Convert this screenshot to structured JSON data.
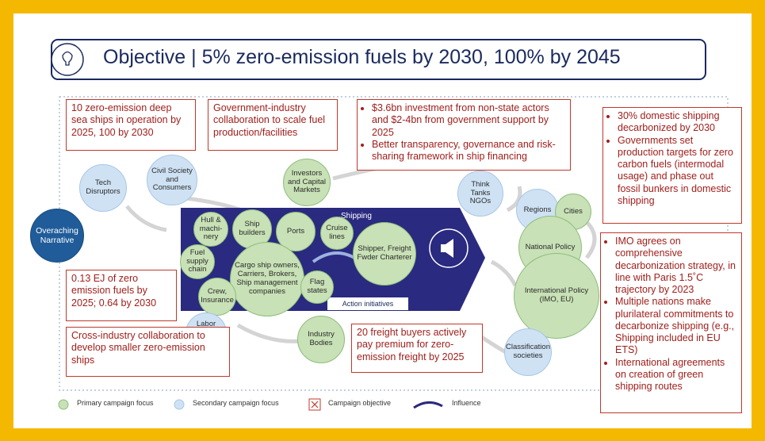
{
  "title": "Objective | 5% zero-emission fuels by 2030, 100% by 2045",
  "shipping_label": "Shipping",
  "action_label": "Action initiatives",
  "objectives": [
    {
      "text": "10 zero-emission deep sea ships in operation by 2025, 100 by 2030"
    },
    {
      "text": "Government-industry collaboration to scale fuel production/facilities"
    },
    {
      "bullets": [
        "$3.6bn investment from non-state actors and $2-4bn from government support by 2025",
        "Better transparency, governance and risk-sharing framework in ship financing"
      ]
    },
    {
      "bullets": [
        "30% domestic shipping decarbonized by 2030",
        "Governments set production targets for zero carbon fuels (intermodal usage) and phase out fossil bunkers in domestic shipping"
      ]
    },
    {
      "bullets": [
        "IMO agrees on comprehensive decarbonization strategy, in line with Paris 1.5˚C trajectory by 2023",
        "Multiple nations make plurilateral commitments to decarbonize shipping (e.g., Shipping included in EU ETS)",
        "International agreements on creation of green shipping routes"
      ]
    },
    {
      "text": "0.13 EJ of zero emission fuels by 2025; 0.64 by 2030"
    },
    {
      "text": "Cross-industry collaboration to develop smaller zero-emission ships"
    },
    {
      "text": "20 freight buyers actively pay premium for zero-emission freight by 2025"
    }
  ],
  "nodes": [
    {
      "label": "Tech Disruptors",
      "focus": "secondary"
    },
    {
      "label": "Civil Society and Consumers",
      "focus": "secondary"
    },
    {
      "label": "Overaching Narrative",
      "focus": "narrative"
    },
    {
      "label": "Investors and Capital Markets",
      "focus": "primary"
    },
    {
      "label": "Think Tanks NGOs",
      "focus": "secondary"
    },
    {
      "label": "Regions",
      "focus": "secondary"
    },
    {
      "label": "Cities",
      "focus": "primary"
    },
    {
      "label": "National Policy",
      "focus": "primary"
    },
    {
      "label": "Hull & machi-nery",
      "focus": "primary"
    },
    {
      "label": "Ship builders",
      "focus": "primary"
    },
    {
      "label": "Ports",
      "focus": "primary"
    },
    {
      "label": "Cruise lines",
      "focus": "primary"
    },
    {
      "label": "Shipper, Freight Fwder Charterer",
      "focus": "primary"
    },
    {
      "label": "Fuel supply chain",
      "focus": "primary"
    },
    {
      "label": "Cargo ship owners, Carriers, Brokers, Ship management companies",
      "focus": "primary"
    },
    {
      "label": "Crew, Insurance",
      "focus": "primary"
    },
    {
      "label": "Flag states",
      "focus": "primary"
    },
    {
      "label": "International Policy (IMO, EU)",
      "focus": "primary"
    },
    {
      "label": "Labor market, Unions",
      "focus": "secondary"
    },
    {
      "label": "Industry Bodies",
      "focus": "primary"
    },
    {
      "label": "Classification societies",
      "focus": "secondary"
    }
  ],
  "legend": [
    "Primary campaign focus",
    "Secondary campaign focus",
    "Campaign objective",
    "Influence"
  ]
}
